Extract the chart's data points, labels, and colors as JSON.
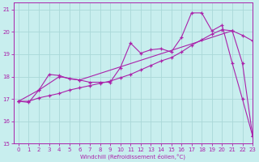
{
  "xlabel": "Windchill (Refroidissement éolien,°C)",
  "xlim": [
    -0.5,
    23
  ],
  "ylim": [
    15,
    21.3
  ],
  "yticks": [
    15,
    16,
    17,
    18,
    19,
    20,
    21
  ],
  "xticks": [
    0,
    1,
    2,
    3,
    4,
    5,
    6,
    7,
    8,
    9,
    10,
    11,
    12,
    13,
    14,
    15,
    16,
    17,
    18,
    19,
    20,
    21,
    22,
    23
  ],
  "background_color": "#c8eeee",
  "grid_color": "#aad8d8",
  "line_color": "#aa22aa",
  "series1_x": [
    0,
    1,
    2,
    3,
    4,
    5,
    6,
    7,
    8,
    9,
    10,
    11,
    12,
    13,
    14,
    15,
    16,
    17,
    18,
    19,
    20,
    21,
    22,
    23
  ],
  "series1_y": [
    16.9,
    16.85,
    17.4,
    18.1,
    18.05,
    17.9,
    17.85,
    17.75,
    17.75,
    17.75,
    18.4,
    19.5,
    19.05,
    19.2,
    19.25,
    19.1,
    19.75,
    20.85,
    20.85,
    20.05,
    20.3,
    18.6,
    17.0,
    15.35
  ],
  "series2_x": [
    0,
    1,
    2,
    3,
    4,
    5,
    6,
    7,
    8,
    9,
    10,
    11,
    12,
    13,
    14,
    15,
    16,
    17,
    18,
    19,
    20,
    21,
    22,
    23
  ],
  "series2_y": [
    16.9,
    16.9,
    17.05,
    17.15,
    17.25,
    17.4,
    17.5,
    17.6,
    17.7,
    17.8,
    17.95,
    18.1,
    18.3,
    18.5,
    18.7,
    18.85,
    19.1,
    19.4,
    19.65,
    19.9,
    20.1,
    20.05,
    19.85,
    19.6
  ],
  "series3_x": [
    0,
    2,
    4,
    6,
    21,
    22,
    23
  ],
  "series3_y": [
    16.9,
    17.4,
    18.0,
    17.85,
    20.05,
    18.6,
    15.35
  ]
}
